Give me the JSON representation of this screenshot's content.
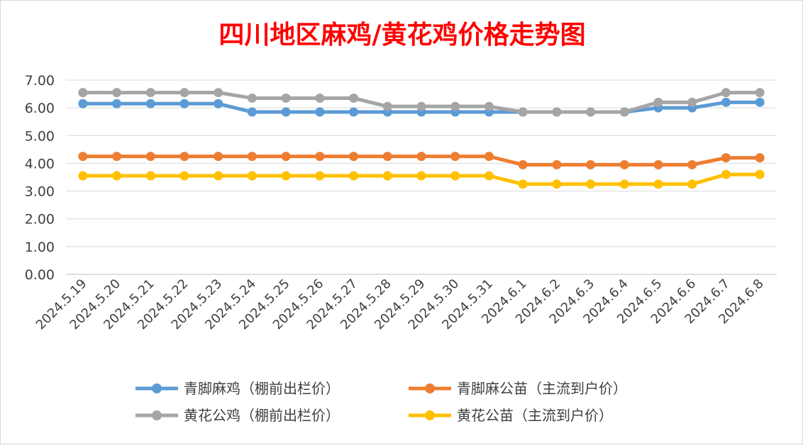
{
  "chart_data": {
    "type": "line",
    "title": "四川地区麻鸡/黄花鸡价格走势图",
    "xlabel": "",
    "ylabel": "",
    "ylim": [
      0,
      7
    ],
    "yticks": [
      "0.00",
      "1.00",
      "2.00",
      "3.00",
      "4.00",
      "5.00",
      "6.00",
      "7.00"
    ],
    "grid": true,
    "legend_position": "bottom",
    "categories": [
      "2024.5.19",
      "2024.5.20",
      "2024.5.21",
      "2024.5.22",
      "2024.5.23",
      "2024.5.24",
      "2024.5.25",
      "2024.5.26",
      "2024.5.27",
      "2024.5.28",
      "2024.5.29",
      "2024.5.30",
      "2024.5.31",
      "2024.6.1",
      "2024.6.2",
      "2024.6.3",
      "2024.6.4",
      "2024.6.5",
      "2024.6.6",
      "2024.6.7",
      "2024.6.8"
    ],
    "series": [
      {
        "name": "青脚麻鸡（棚前出栏价）",
        "color": "#5b9bd5",
        "values": [
          6.15,
          6.15,
          6.15,
          6.15,
          6.15,
          5.85,
          5.85,
          5.85,
          5.85,
          5.85,
          5.85,
          5.85,
          5.85,
          5.85,
          5.85,
          5.85,
          5.85,
          6.0,
          6.0,
          6.2,
          6.2
        ]
      },
      {
        "name": "青脚麻公苗（主流到户价）",
        "color": "#ed7d31",
        "values": [
          4.25,
          4.25,
          4.25,
          4.25,
          4.25,
          4.25,
          4.25,
          4.25,
          4.25,
          4.25,
          4.25,
          4.25,
          4.25,
          3.95,
          3.95,
          3.95,
          3.95,
          3.95,
          3.95,
          4.2,
          4.2
        ]
      },
      {
        "name": "黄花公鸡（棚前出栏价）",
        "color": "#a5a5a5",
        "values": [
          6.55,
          6.55,
          6.55,
          6.55,
          6.55,
          6.35,
          6.35,
          6.35,
          6.35,
          6.05,
          6.05,
          6.05,
          6.05,
          5.85,
          5.85,
          5.85,
          5.85,
          6.2,
          6.2,
          6.55,
          6.55
        ]
      },
      {
        "name": "黄花公苗（主流到户价）",
        "color": "#ffc000",
        "values": [
          3.55,
          3.55,
          3.55,
          3.55,
          3.55,
          3.55,
          3.55,
          3.55,
          3.55,
          3.55,
          3.55,
          3.55,
          3.55,
          3.25,
          3.25,
          3.25,
          3.25,
          3.25,
          3.25,
          3.6,
          3.6
        ]
      }
    ]
  }
}
